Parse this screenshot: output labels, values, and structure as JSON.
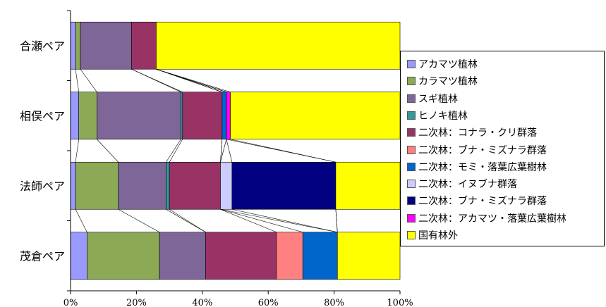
{
  "chart_data": {
    "type": "bar",
    "orientation": "horizontal",
    "stacked": "100%",
    "categories": [
      "合瀬ペア",
      "相俣ペア",
      "法師ペア",
      "茂倉ペア"
    ],
    "xlim": [
      0,
      100
    ],
    "x_ticks": [
      "0%",
      "20%",
      "40%",
      "60%",
      "80%",
      "100%"
    ],
    "grid": false,
    "legend_position": "right",
    "series": [
      {
        "name": "アカマツ植林",
        "color": "#9999ff",
        "values": [
          1.5,
          2.5,
          1.5,
          5.0
        ]
      },
      {
        "name": "カラマツ植林",
        "color": "#8caa55",
        "values": [
          1.5,
          5.5,
          13.0,
          22.0
        ]
      },
      {
        "name": "スギ植林",
        "color": "#7e6699",
        "values": [
          15.5,
          25.5,
          14.5,
          14.0
        ]
      },
      {
        "name": "ヒノキ植林",
        "color": "#339999",
        "values": [
          0.0,
          0.5,
          1.0,
          0.0
        ]
      },
      {
        "name": "二次林：コナラ・クリ群落",
        "color": "#993366",
        "values": [
          7.5,
          12.0,
          15.5,
          21.5
        ]
      },
      {
        "name": "二次林：ブナ・ミズナラ群落",
        "color": "#ff8080",
        "values": [
          0.0,
          0.0,
          0.0,
          8.0
        ]
      },
      {
        "name": "二次林：モミ・落葉広葉樹林",
        "color": "#0066cc",
        "values": [
          0.0,
          1.3,
          0.0,
          10.5
        ]
      },
      {
        "name": "二次林：イヌブナ群落",
        "color": "#ccccff",
        "values": [
          0.0,
          0.0,
          3.5,
          0.0
        ]
      },
      {
        "name": "二次林：ブナ・ミズナラ群落",
        "color": "#000080",
        "values": [
          0.0,
          0.0,
          31.5,
          0.0
        ]
      },
      {
        "name": "二次林：アカマツ・落葉広葉樹林",
        "color": "#ff00ff",
        "values": [
          0.0,
          1.2,
          0.0,
          0.0
        ]
      },
      {
        "name": "国有林外",
        "color": "#ffff00",
        "values": [
          74.0,
          51.5,
          19.5,
          19.0
        ]
      }
    ]
  }
}
